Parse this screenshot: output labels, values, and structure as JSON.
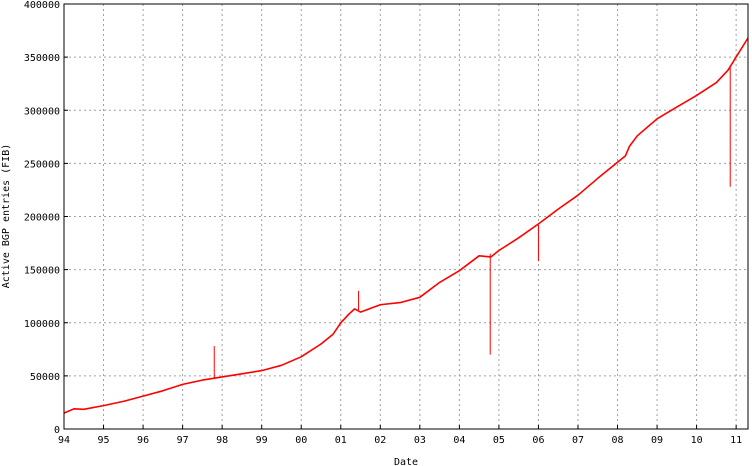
{
  "chart_data": {
    "type": "line",
    "xlabel": "Date",
    "ylabel": "Active BGP entries (FIB)",
    "xlim": [
      1994,
      2011.3
    ],
    "ylim": [
      0,
      400000
    ],
    "grid": true,
    "x_ticks": [
      {
        "value": 1994,
        "label": "94"
      },
      {
        "value": 1995,
        "label": "95"
      },
      {
        "value": 1996,
        "label": "96"
      },
      {
        "value": 1997,
        "label": "97"
      },
      {
        "value": 1998,
        "label": "98"
      },
      {
        "value": 1999,
        "label": "99"
      },
      {
        "value": 2000,
        "label": "00"
      },
      {
        "value": 2001,
        "label": "01"
      },
      {
        "value": 2002,
        "label": "02"
      },
      {
        "value": 2003,
        "label": "03"
      },
      {
        "value": 2004,
        "label": "04"
      },
      {
        "value": 2005,
        "label": "05"
      },
      {
        "value": 2006,
        "label": "06"
      },
      {
        "value": 2007,
        "label": "07"
      },
      {
        "value": 2008,
        "label": "08"
      },
      {
        "value": 2009,
        "label": "09"
      },
      {
        "value": 2010,
        "label": "10"
      },
      {
        "value": 2011,
        "label": "11"
      }
    ],
    "y_ticks": [
      {
        "value": 0,
        "label": "0"
      },
      {
        "value": 50000,
        "label": "50000"
      },
      {
        "value": 100000,
        "label": "100000"
      },
      {
        "value": 150000,
        "label": "150000"
      },
      {
        "value": 200000,
        "label": "200000"
      },
      {
        "value": 250000,
        "label": "250000"
      },
      {
        "value": 300000,
        "label": "300000"
      },
      {
        "value": 350000,
        "label": "350000"
      },
      {
        "value": 400000,
        "label": "400000"
      }
    ],
    "series": [
      {
        "color": "#ff0000",
        "x": [
          1994.0,
          1994.25,
          1994.5,
          1995.0,
          1995.5,
          1996.0,
          1996.5,
          1997.0,
          1997.5,
          1998.0,
          1998.5,
          1999.0,
          1999.5,
          2000.0,
          2000.5,
          2000.8,
          2001.0,
          2001.2,
          2001.35,
          2001.5,
          2002.0,
          2002.5,
          2003.0,
          2003.5,
          2004.0,
          2004.5,
          2004.8,
          2005.0,
          2005.5,
          2006.0,
          2006.5,
          2007.0,
          2007.5,
          2008.0,
          2008.2,
          2008.3,
          2008.5,
          2009.0,
          2009.5,
          2010.0,
          2010.5,
          2010.8,
          2011.0,
          2011.3
        ],
        "y": [
          15000,
          19000,
          18500,
          22000,
          26000,
          31000,
          36000,
          42000,
          46000,
          49000,
          52000,
          55000,
          60000,
          68000,
          80000,
          89000,
          100000,
          108000,
          113000,
          110000,
          117000,
          119000,
          124000,
          138000,
          149000,
          163000,
          162000,
          168000,
          180000,
          193000,
          207000,
          220000,
          236000,
          251000,
          257000,
          266000,
          276000,
          292000,
          303000,
          314000,
          326000,
          338000,
          350000,
          368000
        ]
      }
    ],
    "spikes": [
      {
        "x": 1997.8,
        "from": 47000,
        "to": 78000
      },
      {
        "x": 2001.45,
        "from": 112000,
        "to": 130000
      },
      {
        "x": 2004.78,
        "from": 165000,
        "to": 70000
      },
      {
        "x": 2006.0,
        "from": 192000,
        "to": 158000
      },
      {
        "x": 2010.85,
        "from": 342000,
        "to": 228000
      }
    ]
  }
}
